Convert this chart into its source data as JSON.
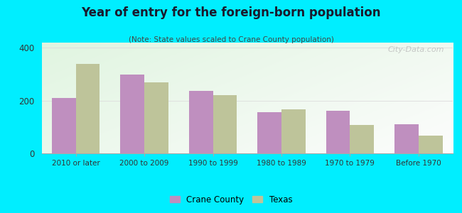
{
  "title": "Year of entry for the foreign-born population",
  "subtitle": "(Note: State values scaled to Crane County population)",
  "categories": [
    "2010 or later",
    "2000 to 2009",
    "1990 to 1999",
    "1980 to 1989",
    "1970 to 1979",
    "Before 1970"
  ],
  "crane_county": [
    210,
    300,
    237,
    155,
    162,
    110
  ],
  "texas": [
    340,
    268,
    222,
    168,
    108,
    68
  ],
  "crane_color": "#bf8fbf",
  "texas_color": "#bec49a",
  "background_outer": "#00eeff",
  "ylim": [
    0,
    420
  ],
  "yticks": [
    0,
    200,
    400
  ],
  "bar_width": 0.35,
  "legend_crane": "Crane County",
  "legend_texas": "Texas",
  "watermark": "City-Data.com"
}
